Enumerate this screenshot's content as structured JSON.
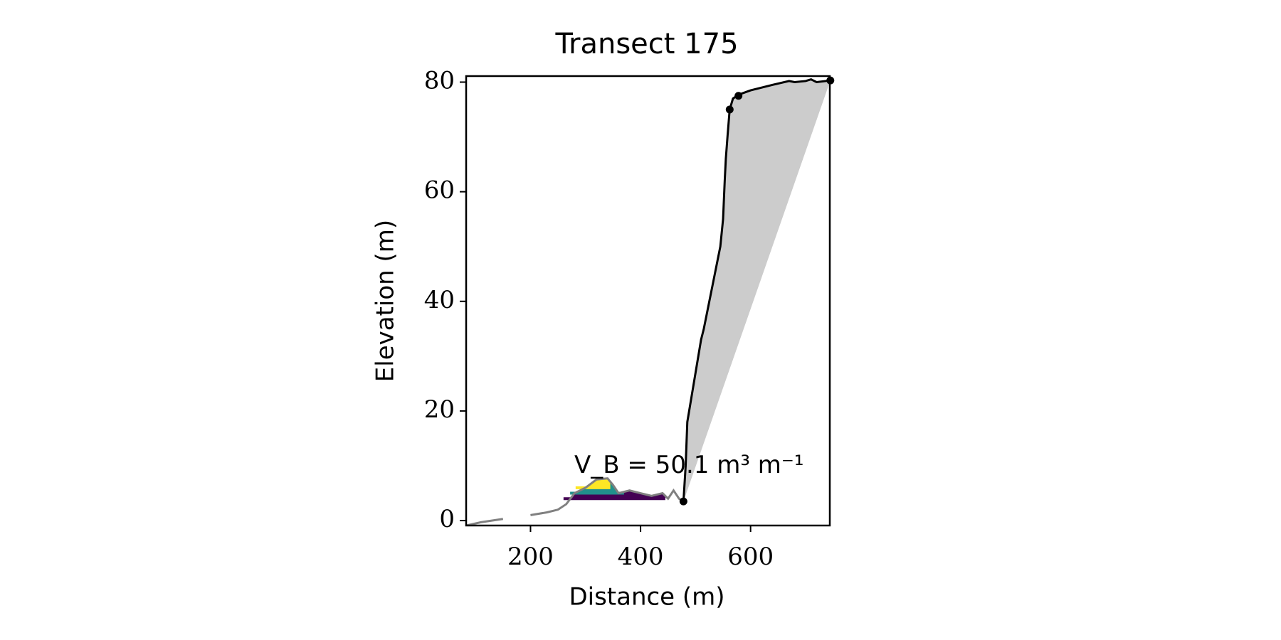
{
  "chart_data": {
    "type": "profile",
    "title": "Transect 175",
    "x_label": "Distance (m)",
    "y_label": "Elevation (m)",
    "annotation": "V_B = 50.1 m³ m⁻¹",
    "xlim": [
      83,
      744
    ],
    "ylim": [
      -0.9,
      81.1
    ],
    "xticks": [
      200,
      400,
      600
    ],
    "yticks": [
      0,
      20,
      40,
      60,
      80
    ],
    "fill_color": "#cccccc",
    "profile": {
      "color": "#000000",
      "x": [
        478,
        482,
        485,
        490,
        500,
        510,
        515,
        525,
        535,
        545,
        550,
        553,
        555,
        558,
        562,
        568,
        578,
        600,
        640,
        670,
        680,
        700,
        710,
        720,
        745
      ],
      "y": [
        3.5,
        10,
        18,
        21,
        27,
        33,
        35,
        40,
        45,
        50,
        55,
        62,
        66,
        70,
        75,
        77,
        77.7,
        78.5,
        79.5,
        80.2,
        80,
        80.2,
        80.5,
        80,
        80.3
      ]
    },
    "gray_profile": {
      "color": "#808080",
      "x": [
        83,
        110,
        150,
        175,
        200,
        230,
        250,
        265,
        280,
        300,
        320,
        340,
        350,
        360,
        380,
        400,
        420,
        440,
        450,
        460,
        470,
        478
      ],
      "y": [
        -0.9,
        -0.3,
        0.3,
        null,
        1,
        1.5,
        2,
        3,
        5,
        6,
        7.5,
        7.7,
        6.5,
        5,
        5.5,
        5,
        4.5,
        5,
        4,
        5.5,
        4,
        3.5
      ]
    },
    "bands": [
      {
        "color": "#440154",
        "level": 4.0,
        "x": [
          260,
          445
        ]
      },
      {
        "color": "#21918c",
        "level": 5.0,
        "x": [
          272,
          370
        ]
      },
      {
        "color": "#fde725",
        "level": 6.0,
        "x": [
          282,
          345
        ]
      }
    ],
    "points": {
      "color": "#000000",
      "x": [
        478,
        562,
        578,
        745
      ],
      "y": [
        3.5,
        75,
        77.5,
        80.3
      ]
    }
  }
}
